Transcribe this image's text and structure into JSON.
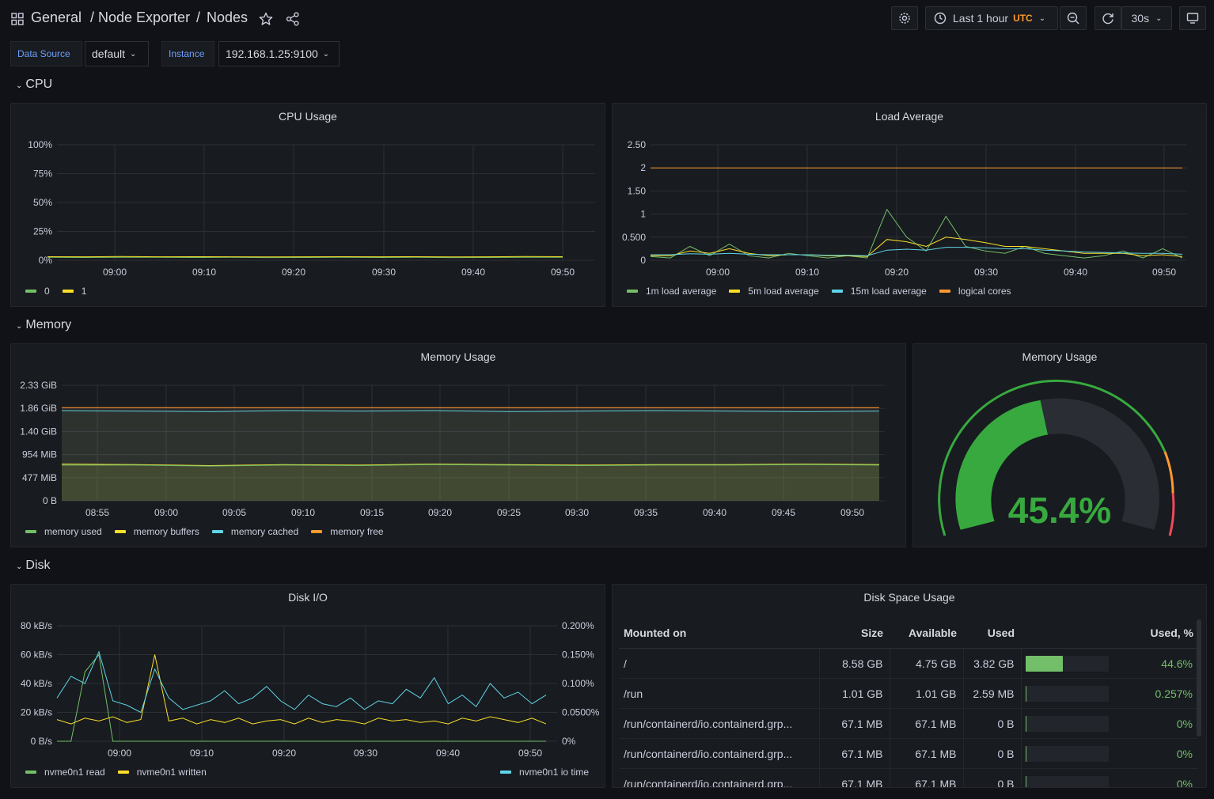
{
  "breadcrumb": {
    "folder": "General",
    "sep1": "/",
    "app": "Node Exporter",
    "sep2": "/",
    "page": "Nodes"
  },
  "toolbar": {
    "time_range": "Last 1 hour",
    "timezone": "UTC",
    "refresh_interval": "30s"
  },
  "variables": [
    {
      "label": "Data Source",
      "value": "default"
    },
    {
      "label": "Instance",
      "value": "192.168.1.25:9100"
    }
  ],
  "rows": {
    "cpu": "CPU",
    "memory": "Memory",
    "disk": "Disk"
  },
  "colors": {
    "green": "#73bf69",
    "yellow": "#fade2a",
    "blue": "#8ab8ff",
    "cyan": "#5fd4e7",
    "orange": "#ff9830",
    "red": "#f2495c",
    "gauge_green": "#37a93f"
  },
  "panels": {
    "cpu_usage": {
      "title": "CPU Usage"
    },
    "load_average": {
      "title": "Load Average"
    },
    "memory_usage": {
      "title": "Memory Usage"
    },
    "memory_gauge": {
      "title": "Memory Usage",
      "value_text": "45.4%"
    },
    "disk_io": {
      "title": "Disk I/O"
    },
    "disk_space": {
      "title": "Disk Space Usage",
      "columns": [
        "Mounted on",
        "Size",
        "Available",
        "Used",
        "Used, %"
      ],
      "rows": [
        {
          "mount": "/",
          "size": "8.58 GB",
          "available": "4.75 GB",
          "used": "3.82 GB",
          "pct_text": "44.6%",
          "pct": 44.6
        },
        {
          "mount": "/run",
          "size": "1.01 GB",
          "available": "1.01 GB",
          "used": "2.59 MB",
          "pct_text": "0.257%",
          "pct": 0.257
        },
        {
          "mount": "/run/containerd/io.containerd.grp...",
          "size": "67.1 MB",
          "available": "67.1 MB",
          "used": "0 B",
          "pct_text": "0%",
          "pct": 0
        },
        {
          "mount": "/run/containerd/io.containerd.grp...",
          "size": "67.1 MB",
          "available": "67.1 MB",
          "used": "0 B",
          "pct_text": "0%",
          "pct": 0
        },
        {
          "mount": "/run/containerd/io.containerd.grp...",
          "size": "67.1 MB",
          "available": "67.1 MB",
          "used": "0 B",
          "pct_text": "0%",
          "pct": 0
        }
      ]
    }
  },
  "chart_data": [
    {
      "id": "cpu",
      "type": "line",
      "title": "CPU Usage",
      "x_ticks": [
        "09:00",
        "09:10",
        "09:20",
        "09:30",
        "09:40",
        "09:50"
      ],
      "y_ticks": [
        "100%",
        "75%",
        "50%",
        "25%",
        "0%"
      ],
      "ylim": [
        0,
        100
      ],
      "series": [
        {
          "name": "0",
          "color": "#73bf69",
          "values": [
            2.5,
            2.4,
            2.6,
            2.5,
            2.4,
            2.5,
            2.3,
            2.4,
            2.5,
            2.4,
            2.5,
            2.3,
            2.4,
            2.6,
            2.5
          ]
        },
        {
          "name": "1",
          "color": "#fade2a",
          "values": [
            3.1,
            3.0,
            3.2,
            3.0,
            3.1,
            3.0,
            2.9,
            3.0,
            3.1,
            3.0,
            3.1,
            2.9,
            3.0,
            3.2,
            3.1
          ]
        }
      ]
    },
    {
      "id": "load",
      "type": "line",
      "title": "Load Average",
      "x_ticks": [
        "09:00",
        "09:10",
        "09:20",
        "09:30",
        "09:40",
        "09:50"
      ],
      "y_ticks": [
        "2.50",
        "2",
        "1.50",
        "1",
        "0.500",
        "0"
      ],
      "ylim": [
        0,
        2.5
      ],
      "series": [
        {
          "name": "1m load average",
          "color": "#73bf69",
          "values": [
            0.08,
            0.05,
            0.3,
            0.1,
            0.35,
            0.1,
            0.05,
            0.15,
            0.1,
            0.05,
            0.1,
            0.05,
            1.1,
            0.5,
            0.2,
            0.95,
            0.3,
            0.2,
            0.15,
            0.3,
            0.15,
            0.1,
            0.05,
            0.1,
            0.2,
            0.05,
            0.25,
            0.05
          ]
        },
        {
          "name": "5m load average",
          "color": "#fade2a",
          "values": [
            0.1,
            0.1,
            0.2,
            0.15,
            0.25,
            0.15,
            0.1,
            0.12,
            0.12,
            0.1,
            0.1,
            0.08,
            0.45,
            0.4,
            0.3,
            0.5,
            0.45,
            0.38,
            0.3,
            0.3,
            0.25,
            0.2,
            0.15,
            0.15,
            0.15,
            0.1,
            0.12,
            0.08
          ]
        },
        {
          "name": "15m load average",
          "color": "#5fd4e7",
          "values": [
            0.12,
            0.12,
            0.14,
            0.13,
            0.15,
            0.13,
            0.12,
            0.12,
            0.12,
            0.11,
            0.11,
            0.1,
            0.22,
            0.24,
            0.22,
            0.28,
            0.28,
            0.27,
            0.25,
            0.25,
            0.22,
            0.2,
            0.18,
            0.17,
            0.16,
            0.15,
            0.15,
            0.13
          ]
        },
        {
          "name": "logical cores",
          "color": "#ff9830",
          "values": [
            2,
            2,
            2,
            2,
            2,
            2,
            2,
            2,
            2,
            2,
            2,
            2,
            2,
            2,
            2,
            2,
            2,
            2,
            2,
            2,
            2,
            2,
            2,
            2,
            2,
            2,
            2,
            2
          ]
        }
      ]
    },
    {
      "id": "mem",
      "type": "area",
      "title": "Memory Usage",
      "x_ticks": [
        "08:55",
        "09:00",
        "09:05",
        "09:10",
        "09:15",
        "09:20",
        "09:25",
        "09:30",
        "09:35",
        "09:40",
        "09:45",
        "09:50"
      ],
      "y_ticks": [
        "2.33 GiB",
        "1.86 GiB",
        "1.40 GiB",
        "954 MiB",
        "477 MiB",
        "0 B"
      ],
      "ylim": [
        0,
        2.33
      ],
      "series": [
        {
          "name": "memory used",
          "color": "#73bf69",
          "values": [
            0.72,
            0.72,
            0.7,
            0.72,
            0.71,
            0.73,
            0.72,
            0.71,
            0.72,
            0.72,
            0.73,
            0.72
          ]
        },
        {
          "name": "memory buffers",
          "color": "#fade2a",
          "values": [
            0.74,
            0.73,
            0.71,
            0.73,
            0.72,
            0.74,
            0.73,
            0.72,
            0.73,
            0.73,
            0.74,
            0.73
          ]
        },
        {
          "name": "memory cached",
          "color": "#5fd4e7",
          "values": [
            1.82,
            1.81,
            1.8,
            1.82,
            1.81,
            1.82,
            1.8,
            1.81,
            1.82,
            1.81,
            1.8,
            1.81
          ]
        },
        {
          "name": "memory free",
          "color": "#ff9830",
          "values": [
            1.88,
            1.88,
            1.88,
            1.88,
            1.88,
            1.88,
            1.88,
            1.88,
            1.88,
            1.88,
            1.88,
            1.88
          ]
        }
      ]
    },
    {
      "id": "disk",
      "type": "line",
      "title": "Disk I/O",
      "x_ticks": [
        "09:00",
        "09:10",
        "09:20",
        "09:30",
        "09:40",
        "09:50"
      ],
      "y_ticks": [
        "80 kB/s",
        "60 kB/s",
        "40 kB/s",
        "20 kB/s",
        "0 B/s"
      ],
      "y2_ticks": [
        "0.200%",
        "0.150%",
        "0.100%",
        "0.0500%",
        "0%"
      ],
      "ylim": [
        0,
        80
      ],
      "series": [
        {
          "name": "nvme0n1 read",
          "color": "#73bf69",
          "values": [
            0,
            0,
            48,
            60,
            0,
            0,
            0,
            0,
            0,
            0,
            0,
            0,
            0,
            0,
            0,
            0,
            0,
            0,
            0,
            0,
            0,
            0,
            0,
            0,
            0,
            0,
            0,
            0,
            0,
            0,
            0,
            0,
            0,
            0,
            0,
            0
          ]
        },
        {
          "name": "nvme0n1 written",
          "color": "#fade2a",
          "values": [
            15,
            12,
            16,
            14,
            17,
            13,
            15,
            60,
            14,
            16,
            12,
            15,
            13,
            16,
            12,
            14,
            15,
            12,
            16,
            13,
            15,
            14,
            12,
            16,
            14,
            15,
            13,
            14,
            12,
            16,
            14,
            17,
            15,
            13,
            16,
            12
          ]
        },
        {
          "name": "nvme0n1 io time",
          "color": "#5fd4e7",
          "values": [
            30,
            45,
            40,
            62,
            28,
            25,
            20,
            50,
            30,
            22,
            25,
            28,
            35,
            26,
            30,
            38,
            28,
            22,
            32,
            26,
            24,
            30,
            22,
            28,
            26,
            36,
            30,
            44,
            26,
            32,
            24,
            40,
            30,
            34,
            26,
            32
          ]
        }
      ]
    }
  ]
}
